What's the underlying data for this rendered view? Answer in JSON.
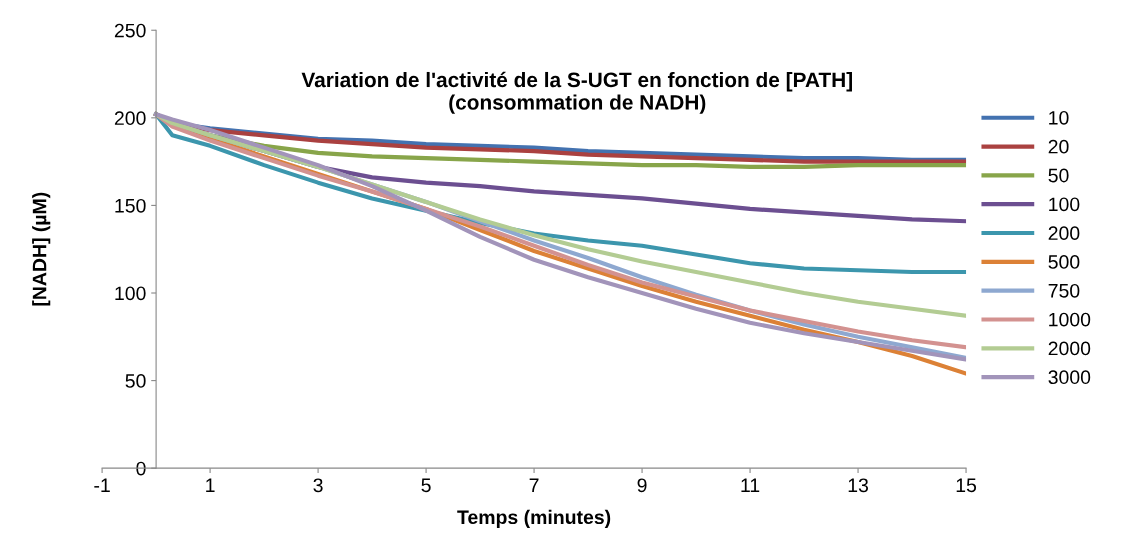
{
  "chart_data": {
    "type": "line",
    "title": "Variation de l'activité de la S-UGT en fonction de [PATH]\n(consommation de NADH)",
    "xlabel": "Temps (minutes)",
    "ylabel": "[NADH] (µM)",
    "xlim": [
      -1,
      15
    ],
    "xticks": [
      -1,
      1,
      3,
      5,
      7,
      9,
      11,
      13,
      15
    ],
    "ylim": [
      0,
      250
    ],
    "yticks": [
      0,
      50,
      100,
      150,
      200,
      250
    ],
    "grid": false,
    "legend": "right",
    "marker": "none",
    "line_style": "solid",
    "x": [
      0,
      0.3,
      1,
      2,
      3,
      4,
      5,
      6,
      7,
      8,
      9,
      10,
      11,
      12,
      13,
      14,
      15
    ],
    "series": [
      {
        "name": "10",
        "color": "#4372b0",
        "values": [
          202,
          197,
          194,
          191,
          188,
          187,
          185,
          184,
          183,
          181,
          180,
          179,
          178,
          177,
          177,
          176,
          176
        ]
      },
      {
        "name": "20",
        "color": "#aa4140",
        "values": [
          202,
          197,
          193,
          190,
          187,
          185,
          183,
          182,
          181,
          179,
          178,
          177,
          176,
          175,
          175,
          175,
          175
        ]
      },
      {
        "name": "50",
        "color": "#88a54a",
        "values": [
          202,
          196,
          190,
          184,
          180,
          178,
          177,
          176,
          175,
          174,
          173,
          173,
          172,
          172,
          173,
          173,
          173
        ]
      },
      {
        "name": "100",
        "color": "#6c4f91",
        "values": [
          202,
          196,
          190,
          181,
          172,
          166,
          163,
          161,
          158,
          156,
          154,
          151,
          148,
          146,
          144,
          142,
          141
        ]
      },
      {
        "name": "200",
        "color": "#3c96ad",
        "values": [
          202,
          190,
          184,
          173,
          163,
          154,
          147,
          140,
          134,
          130,
          127,
          122,
          117,
          114,
          113,
          112,
          112
        ]
      },
      {
        "name": "500",
        "color": "#dc8136",
        "values": [
          202,
          196,
          188,
          178,
          168,
          158,
          148,
          136,
          124,
          114,
          104,
          95,
          87,
          79,
          72,
          64,
          54
        ]
      },
      {
        "name": "750",
        "color": "#8ea8d0",
        "values": [
          202,
          197,
          190,
          181,
          172,
          162,
          152,
          141,
          130,
          120,
          109,
          99,
          90,
          82,
          75,
          69,
          63
        ]
      },
      {
        "name": "1000",
        "color": "#d39290",
        "values": [
          202,
          195,
          187,
          177,
          167,
          158,
          148,
          138,
          127,
          116,
          106,
          98,
          90,
          84,
          78,
          73,
          69
        ]
      },
      {
        "name": "2000",
        "color": "#b3cc93",
        "values": [
          202,
          197,
          190,
          181,
          172,
          162,
          152,
          142,
          133,
          125,
          118,
          112,
          106,
          100,
          95,
          91,
          87
        ]
      },
      {
        "name": "3000",
        "color": "#a294ba",
        "values": [
          202,
          199,
          193,
          183,
          173,
          161,
          147,
          132,
          119,
          109,
          100,
          91,
          83,
          77,
          72,
          67,
          62
        ]
      }
    ]
  }
}
